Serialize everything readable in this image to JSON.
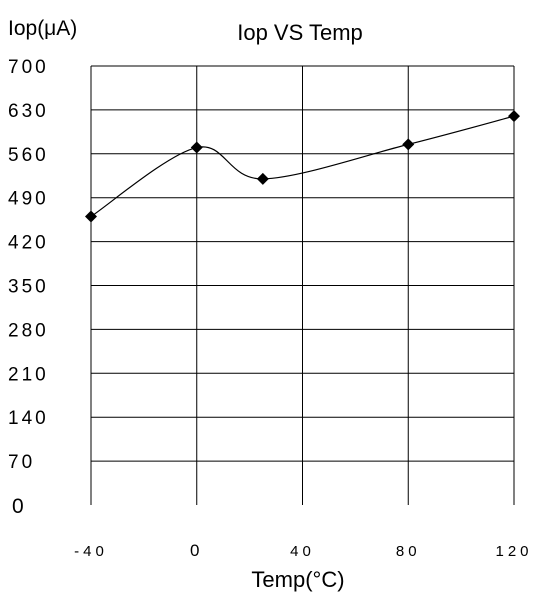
{
  "chart_data": {
    "type": "line",
    "title": "Iop VS Temp",
    "ylabel": "Iop(μA)",
    "xlabel": "Temp(°C)",
    "x": [
      -40,
      0,
      25,
      80,
      120
    ],
    "series": [
      {
        "values": [
          460,
          570,
          520,
          575,
          620
        ]
      }
    ],
    "xlim": [
      -40,
      120
    ],
    "ylim": [
      0,
      700
    ],
    "x_tick_values": [
      -40,
      0,
      40,
      80,
      120
    ],
    "x_tick_labels": [
      "-40",
      "0",
      "40",
      "80",
      "120"
    ],
    "y_tick_values": [
      0,
      70,
      140,
      210,
      280,
      350,
      420,
      490,
      560,
      630,
      700
    ],
    "y_tick_labels": [
      "0",
      "70",
      "140",
      "210",
      "280",
      "350",
      "420",
      "490",
      "560",
      "630",
      "700"
    ],
    "grid": true,
    "legend": "none",
    "marker": "diamond",
    "line_color": "#000000"
  }
}
